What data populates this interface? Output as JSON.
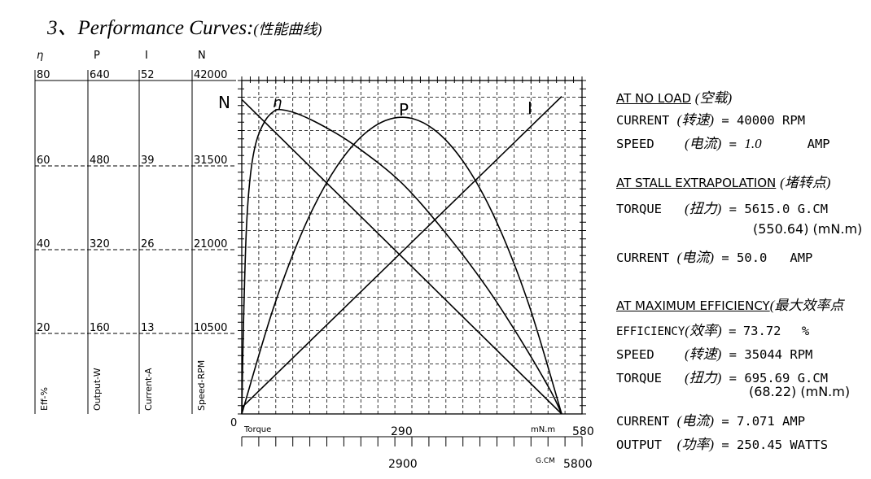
{
  "title": {
    "main": "3、Performance Curves:",
    "sub": "(性能曲线)"
  },
  "chart_data": {
    "type": "line",
    "title": "3、Performance Curves: (性能曲线)",
    "xlabel": "Torque",
    "x_unit_primary": "mN.m",
    "x_unit_secondary": "G.CM",
    "x_primary_ticks": [
      "0",
      "290",
      "580"
    ],
    "x_secondary_ticks": [
      "2900",
      "5800"
    ],
    "xlim": [
      0,
      580
    ],
    "y_axes": [
      {
        "symbol": "η",
        "label": "Eff-%",
        "ticks": [
          "80",
          "60",
          "40",
          "20"
        ],
        "ylim": [
          0,
          80
        ]
      },
      {
        "symbol": "P",
        "label": "Output-W",
        "ticks": [
          "640",
          "480",
          "320",
          "160"
        ],
        "ylim": [
          0,
          640
        ]
      },
      {
        "symbol": "I",
        "label": "Current-A",
        "ticks": [
          "52",
          "39",
          "26",
          "13"
        ],
        "ylim": [
          0,
          52
        ]
      },
      {
        "symbol": "N",
        "label": "Speed-RPM",
        "ticks": [
          "42000",
          "31500",
          "21000",
          "10500"
        ],
        "ylim": [
          0,
          42000
        ]
      }
    ],
    "zero_label": "0",
    "series": [
      {
        "name": "N",
        "axis": "N",
        "x": [
          0,
          550.64
        ],
        "values": [
          40000,
          0
        ]
      },
      {
        "name": "I",
        "axis": "I",
        "x": [
          0,
          550.64
        ],
        "values": [
          1.0,
          50.0
        ]
      },
      {
        "name": "P",
        "axis": "P",
        "x": [
          0,
          55,
          110,
          165,
          220,
          275.3,
          330,
          385,
          440,
          495,
          550.64
        ],
        "values": [
          0,
          207,
          368,
          482,
          551,
          575,
          552,
          483,
          369,
          209,
          0
        ]
      },
      {
        "name": "η",
        "axis": "η",
        "x": [
          0,
          3,
          8,
          15,
          25,
          40,
          55,
          68.22,
          100,
          150,
          200,
          275,
          350,
          420,
          480,
          530,
          550.64
        ],
        "values": [
          0,
          22,
          45,
          58,
          66,
          71,
          73.3,
          73.72,
          72.5,
          69,
          64.5,
          56,
          44,
          31,
          18,
          6,
          0
        ]
      }
    ],
    "grid": true
  },
  "specs": {
    "no_load": {
      "header": "AT NO LOAD",
      "header_cn": "(空载)",
      "rows": [
        {
          "label": "CURRENT",
          "cn": "(转速)",
          "eq": "=",
          "value": "40000",
          "unit": "RPM"
        },
        {
          "label": "SPEED",
          "cn": "(电流)",
          "eq": "=",
          "value": "1.0",
          "unit": "AMP"
        }
      ]
    },
    "stall": {
      "header": "AT STALL EXTRAPOLATION",
      "header_cn": "(堵转点)",
      "rows": [
        {
          "label": "TORQUE",
          "cn": "(扭力)",
          "eq": "=",
          "value": "5615.0",
          "unit": "G.CM",
          "extra": "(550.64) (mN.m)"
        },
        {
          "label": "CURRENT",
          "cn": "(电流)",
          "eq": "=",
          "value": "50.0",
          "unit": "AMP"
        }
      ]
    },
    "max_eff": {
      "header": "AT MAXIMUM EFFICIENCY",
      "header_cn": "(最大效率点",
      "rows": [
        {
          "label": "EFFICIENCY",
          "cn": "(效率)",
          "eq": "=",
          "value": "73.72",
          "unit": "%"
        },
        {
          "label": "SPEED",
          "cn": "(转速)",
          "eq": "=",
          "value": "35044",
          "unit": "RPM"
        },
        {
          "label": "TORQUE",
          "cn": "(扭力)",
          "eq": "=",
          "value": "695.69",
          "unit": "G.CM",
          "extra": "(68.22) (mN.m)"
        },
        {
          "label": "CURRENT",
          "cn": "(电流)",
          "eq": "=",
          "value": "7.071",
          "unit": "AMP"
        },
        {
          "label": "OUTPUT",
          "cn": "(功率)",
          "eq": "=",
          "value": "250.45",
          "unit": "WATTS"
        }
      ]
    }
  }
}
